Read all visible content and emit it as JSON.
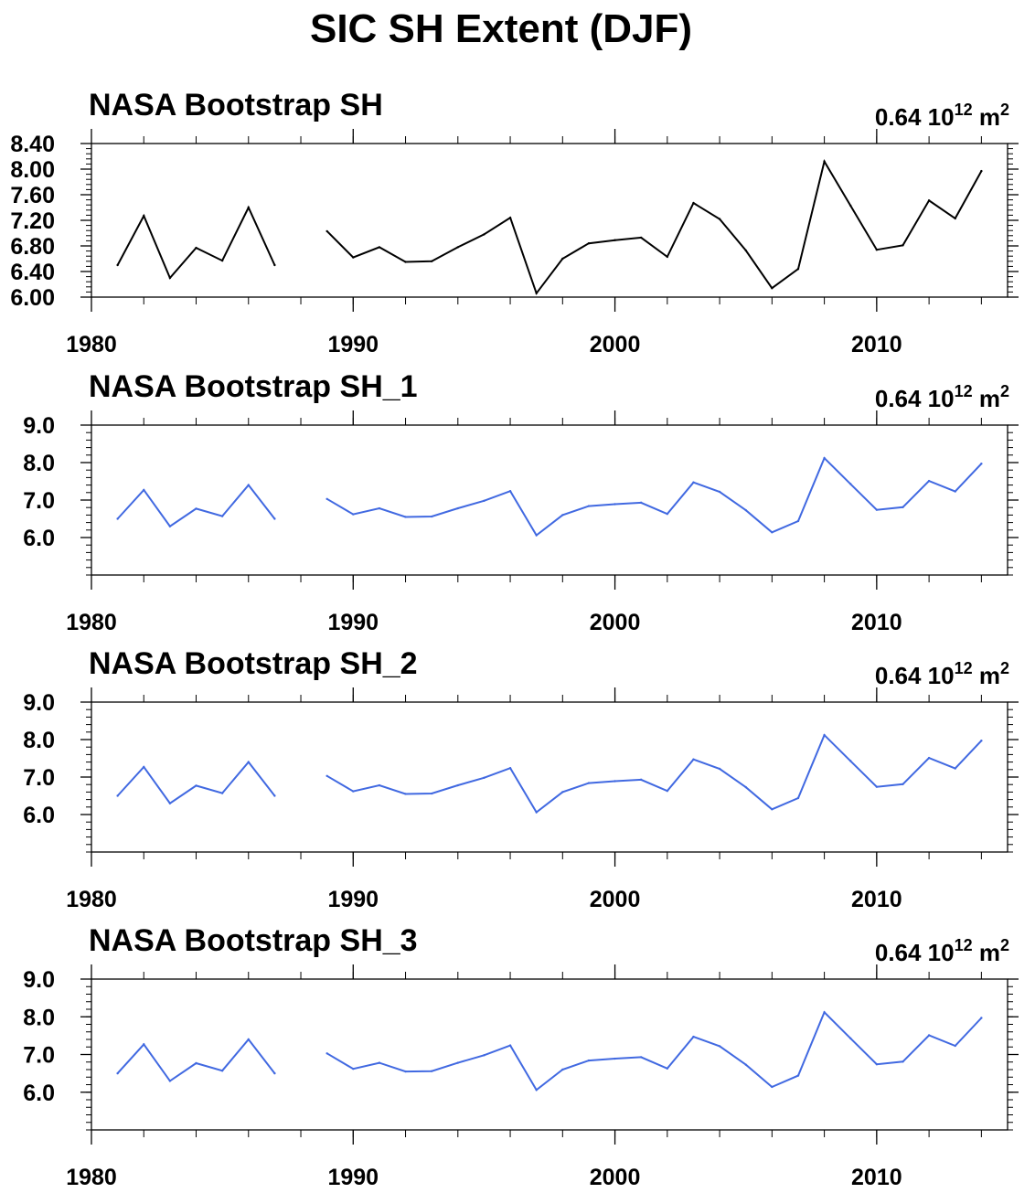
{
  "figure_title": "SIC SH Extent (DJF)",
  "colors": {
    "black_line": "#000000",
    "blue_line": "#4169e1"
  },
  "chart_data": [
    {
      "type": "line",
      "title": "NASA Bootstrap SH",
      "annotation": {
        "base": "0.64 10",
        "exp": "12",
        "unit": " m",
        "unit_exp": "2"
      },
      "line_color": "#000000",
      "x_ticks": [
        "1980",
        "1990",
        "2000",
        "2010"
      ],
      "y_ticks": [
        "6.00",
        "6.40",
        "6.80",
        "7.20",
        "7.60",
        "8.00",
        "8.40"
      ],
      "ylim": [
        6.0,
        8.4
      ],
      "xlim": [
        1980,
        2015
      ],
      "x": [
        1981,
        1982,
        1983,
        1984,
        1985,
        1986,
        1987,
        1988,
        1989,
        1990,
        1991,
        1992,
        1993,
        1994,
        1995,
        1996,
        1997,
        1998,
        1999,
        2000,
        2001,
        2002,
        2003,
        2004,
        2005,
        2006,
        2007,
        2008,
        2009,
        2010,
        2011,
        2012,
        2013,
        2014
      ],
      "values": [
        6.5,
        7.27,
        6.3,
        6.77,
        6.57,
        7.4,
        6.5,
        null,
        7.03,
        6.62,
        6.78,
        6.55,
        6.56,
        6.78,
        6.98,
        7.24,
        6.06,
        6.6,
        6.84,
        6.89,
        6.93,
        6.63,
        7.47,
        7.22,
        6.73,
        6.14,
        6.44,
        8.12,
        7.43,
        6.74,
        6.81,
        7.51,
        7.23,
        7.97
      ]
    },
    {
      "type": "line",
      "title": "NASA Bootstrap SH_1",
      "annotation": {
        "base": "0.64 10",
        "exp": "12",
        "unit": " m",
        "unit_exp": "2"
      },
      "line_color": "#4169e1",
      "x_ticks": [
        "1980",
        "1990",
        "2000",
        "2010"
      ],
      "y_ticks": [
        "6.0",
        "7.0",
        "8.0",
        "9.0"
      ],
      "ylim": [
        5.0,
        9.0
      ],
      "xlim": [
        1980,
        2015
      ],
      "x": [
        1981,
        1982,
        1983,
        1984,
        1985,
        1986,
        1987,
        1988,
        1989,
        1990,
        1991,
        1992,
        1993,
        1994,
        1995,
        1996,
        1997,
        1998,
        1999,
        2000,
        2001,
        2002,
        2003,
        2004,
        2005,
        2006,
        2007,
        2008,
        2009,
        2010,
        2011,
        2012,
        2013,
        2014
      ],
      "values": [
        6.5,
        7.27,
        6.3,
        6.77,
        6.57,
        7.4,
        6.5,
        null,
        7.03,
        6.62,
        6.78,
        6.55,
        6.56,
        6.78,
        6.98,
        7.24,
        6.06,
        6.6,
        6.84,
        6.89,
        6.93,
        6.63,
        7.47,
        7.22,
        6.73,
        6.14,
        6.44,
        8.12,
        7.43,
        6.74,
        6.81,
        7.51,
        7.23,
        7.97
      ]
    },
    {
      "type": "line",
      "title": "NASA Bootstrap SH_2",
      "annotation": {
        "base": "0.64 10",
        "exp": "12",
        "unit": " m",
        "unit_exp": "2"
      },
      "line_color": "#4169e1",
      "x_ticks": [
        "1980",
        "1990",
        "2000",
        "2010"
      ],
      "y_ticks": [
        "6.0",
        "7.0",
        "8.0",
        "9.0"
      ],
      "ylim": [
        5.0,
        9.0
      ],
      "xlim": [
        1980,
        2015
      ],
      "x": [
        1981,
        1982,
        1983,
        1984,
        1985,
        1986,
        1987,
        1988,
        1989,
        1990,
        1991,
        1992,
        1993,
        1994,
        1995,
        1996,
        1997,
        1998,
        1999,
        2000,
        2001,
        2002,
        2003,
        2004,
        2005,
        2006,
        2007,
        2008,
        2009,
        2010,
        2011,
        2012,
        2013,
        2014
      ],
      "values": [
        6.5,
        7.27,
        6.3,
        6.77,
        6.57,
        7.4,
        6.5,
        null,
        7.03,
        6.62,
        6.78,
        6.55,
        6.56,
        6.78,
        6.98,
        7.24,
        6.06,
        6.6,
        6.84,
        6.89,
        6.93,
        6.63,
        7.47,
        7.22,
        6.73,
        6.14,
        6.44,
        8.12,
        7.43,
        6.74,
        6.81,
        7.51,
        7.23,
        7.97
      ]
    },
    {
      "type": "line",
      "title": "NASA Bootstrap SH_3",
      "annotation": {
        "base": "0.64 10",
        "exp": "12",
        "unit": " m",
        "unit_exp": "2"
      },
      "line_color": "#4169e1",
      "x_ticks": [
        "1980",
        "1990",
        "2000",
        "2010"
      ],
      "y_ticks": [
        "6.0",
        "7.0",
        "8.0",
        "9.0"
      ],
      "ylim": [
        5.0,
        9.0
      ],
      "xlim": [
        1980,
        2015
      ],
      "x": [
        1981,
        1982,
        1983,
        1984,
        1985,
        1986,
        1987,
        1988,
        1989,
        1990,
        1991,
        1992,
        1993,
        1994,
        1995,
        1996,
        1997,
        1998,
        1999,
        2000,
        2001,
        2002,
        2003,
        2004,
        2005,
        2006,
        2007,
        2008,
        2009,
        2010,
        2011,
        2012,
        2013,
        2014
      ],
      "values": [
        6.5,
        7.27,
        6.3,
        6.77,
        6.57,
        7.4,
        6.5,
        null,
        7.03,
        6.62,
        6.78,
        6.55,
        6.56,
        6.78,
        6.98,
        7.24,
        6.06,
        6.6,
        6.84,
        6.89,
        6.93,
        6.63,
        7.47,
        7.22,
        6.73,
        6.14,
        6.44,
        8.12,
        7.43,
        6.74,
        6.81,
        7.51,
        7.23,
        7.97
      ]
    }
  ]
}
